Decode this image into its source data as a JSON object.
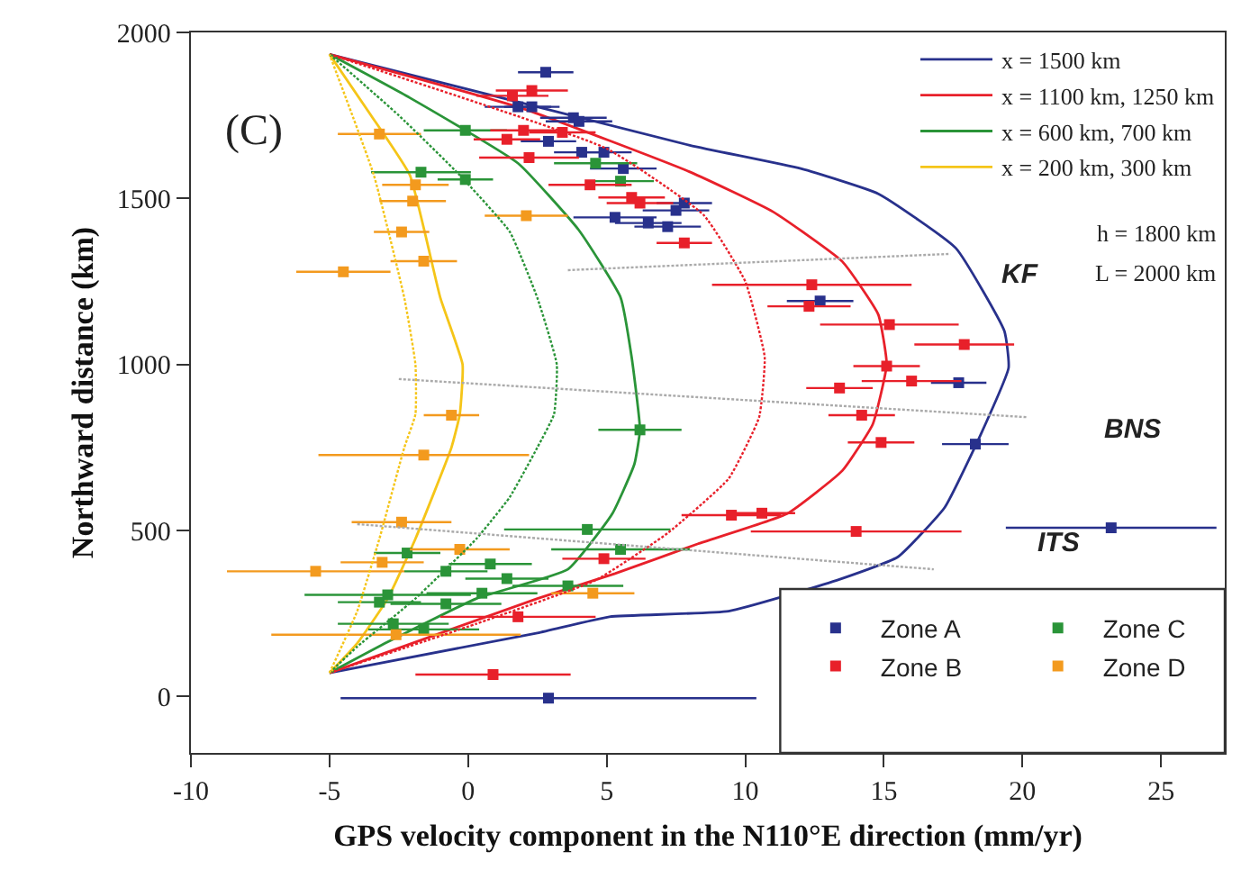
{
  "chart_data": {
    "type": "scatter",
    "xlabel": "GPS velocity component in the N110°E direction (mm/yr)",
    "ylabel": "Northward distance (km)",
    "xlim": [
      -10,
      27.3
    ],
    "ylim": [
      -170,
      2000
    ],
    "xticks": [
      -10,
      -5,
      0,
      5,
      10,
      15,
      20,
      25
    ],
    "yticks": [
      0,
      500,
      1000,
      1500,
      2000
    ],
    "legend": "right",
    "marker": "square",
    "annotations": [
      "(C)",
      "h = 1800 km",
      "L = 2000 km",
      "KF",
      "BNS",
      "ITS"
    ],
    "series": [
      {
        "type": "line",
        "marker": "none",
        "name": "x = 1500 km",
        "color": "#28318c",
        "line_style": "solid",
        "x": [
          -5,
          2.5,
          5.1,
          9.4,
          13.3,
          15.5,
          17.2,
          18.5,
          19.5,
          19.35,
          17.6,
          14.8,
          12,
          8,
          -5
        ],
        "values": [
          71,
          191,
          240,
          257,
          350,
          420,
          570,
          790,
          990,
          1100,
          1350,
          1514,
          1590,
          1660,
          1934
        ]
      },
      {
        "type": "line",
        "marker": "none",
        "color": "#e8202a",
        "line_style": "dotted",
        "x": [
          -5,
          0.3,
          4.6,
          7.2,
          9.4,
          10.5,
          10.7,
          10,
          8.5,
          5,
          -5
        ],
        "values": [
          71,
          219,
          350,
          492,
          656,
          841,
          1022,
          1250,
          1450,
          1650,
          1934
        ]
      },
      {
        "type": "line",
        "marker": "none",
        "name": "x = 1100 km, 1250 km",
        "color": "#e8202a",
        "line_style": "solid",
        "x": [
          -5,
          2.5,
          5.3,
          8.3,
          11.5,
          13.5,
          14.6,
          15.1,
          14.8,
          13.5,
          11,
          8,
          2,
          -5
        ],
        "values": [
          71,
          295,
          370,
          460,
          550,
          680,
          820,
          1000,
          1150,
          1310,
          1460,
          1580,
          1770,
          1934
        ]
      },
      {
        "type": "line",
        "marker": "none",
        "color": "#2a9438",
        "line_style": "dotted",
        "x": [
          -5,
          -4,
          -1.9,
          0.3,
          1.5,
          2.5,
          3.1,
          3.2,
          2.5,
          1.5,
          -0.3,
          -2.5,
          -5
        ],
        "values": [
          71,
          150,
          295,
          475,
          600,
          750,
          850,
          1000,
          1200,
          1400,
          1570,
          1750,
          1934
        ]
      },
      {
        "type": "line",
        "marker": "none",
        "name": "x = 600 km, 700 km",
        "color": "#2a9438",
        "line_style": "solid",
        "x": [
          -5,
          -2.9,
          0.3,
          3.6,
          5.2,
          6,
          6.2,
          5.9,
          5.5,
          4,
          1.8,
          -2.1,
          -5
        ],
        "values": [
          71,
          164,
          295,
          383,
          550,
          700,
          803,
          1022,
          1202,
          1404,
          1606,
          1803,
          1934
        ]
      },
      {
        "type": "line",
        "marker": "none",
        "color": "#f5c518",
        "line_style": "dotted",
        "x": [
          -5,
          -4,
          -3.2,
          -2.3,
          -1.9,
          -1.9,
          -2.3,
          -3.4,
          -5
        ],
        "values": [
          71,
          257,
          475,
          750,
          850,
          1000,
          1200,
          1570,
          1934
        ]
      },
      {
        "type": "line",
        "marker": "none",
        "name": "x = 200 km, 300 km",
        "color": "#f5c518",
        "line_style": "solid",
        "x": [
          -5,
          -4,
          -2.9,
          -1.9,
          -0.6,
          -0.3,
          -0.2,
          -1,
          -2.1,
          -3.5,
          -5
        ],
        "values": [
          71,
          160,
          295,
          475,
          750,
          850,
          1000,
          1200,
          1570,
          1750,
          1934
        ]
      },
      {
        "type": "line",
        "marker": "none",
        "color": "#aaaaaa",
        "line_style": "dotted",
        "x": [
          3.6,
          17.4
        ],
        "values": [
          1284,
          1333
        ]
      },
      {
        "type": "line",
        "marker": "none",
        "color": "#aaaaaa",
        "line_style": "dotted",
        "x": [
          -2.5,
          20.2
        ],
        "values": [
          956,
          841
        ]
      },
      {
        "type": "line",
        "marker": "none",
        "color": "#aaaaaa",
        "line_style": "dotted",
        "x": [
          -4,
          16.8
        ],
        "values": [
          519,
          383
        ]
      },
      {
        "name": "Zone A",
        "color": "#28318c",
        "x": [
          2.8,
          1.8,
          2.3,
          3.8,
          4.0,
          2.9,
          4.1,
          4.9,
          5.6,
          5.3,
          6.5,
          7.2,
          7.5,
          7.8,
          12.7,
          17.7,
          18.3,
          23.2,
          2.9
        ],
        "values": [
          1880,
          1776,
          1776,
          1743,
          1732,
          1672,
          1639,
          1639,
          1590,
          1443,
          1426,
          1415,
          1464,
          1486,
          1191,
          945,
          760,
          508,
          -5
        ],
        "xerrors": [
          1.0,
          1.2,
          1.0,
          1.2,
          1.2,
          1.0,
          1.0,
          1.0,
          1.2,
          1.5,
          1.2,
          1.2,
          1.2,
          1.0,
          1.2,
          1.0,
          1.2,
          3.8,
          7.5
        ]
      },
      {
        "name": "Zone C",
        "color": "#2a9438",
        "x": [
          -0.1,
          -1.7,
          -0.1,
          4.6,
          5.5,
          6.2,
          4.3,
          -2.2,
          -0.8,
          0.8,
          1.4,
          3.6,
          0.5,
          -2.9,
          -3.2,
          -0.8,
          -2.7,
          -1.6,
          5.5
        ],
        "values": [
          1705,
          1579,
          1557,
          1606,
          1552,
          803,
          503,
          432,
          377,
          399,
          355,
          333,
          311,
          306,
          284,
          279,
          219,
          202,
          443
        ],
        "xerrors": [
          1.5,
          1.8,
          1.0,
          1.5,
          1.2,
          1.5,
          3.0,
          1.2,
          1.5,
          1.5,
          1.5,
          2.0,
          2.0,
          3.0,
          1.5,
          2.0,
          2.0,
          2.0,
          2.5
        ]
      },
      {
        "name": "Zone B",
        "color": "#e8202a",
        "x": [
          2.3,
          1.6,
          2.0,
          1.4,
          3.4,
          2.2,
          4.4,
          5.9,
          6.2,
          7.8,
          12.4,
          12.3,
          15.2,
          17.9,
          15.1,
          16.0,
          13.4,
          14.2,
          14.9,
          9.5,
          10.6,
          14.0,
          4.9,
          1.8,
          0.9
        ],
        "values": [
          1825,
          1809,
          1705,
          1678,
          1699,
          1623,
          1541,
          1503,
          1486,
          1366,
          1240,
          1175,
          1120,
          1060,
          995,
          950,
          929,
          847,
          765,
          546,
          552,
          497,
          415,
          240,
          66
        ],
        "xerrors": [
          1.3,
          1.3,
          1.2,
          1.2,
          1.2,
          1.8,
          1.5,
          1.2,
          1.2,
          1.0,
          3.6,
          1.5,
          2.5,
          1.8,
          1.2,
          1.8,
          1.2,
          1.2,
          1.2,
          1.8,
          1.2,
          3.8,
          1.5,
          2.8,
          2.8
        ]
      },
      {
        "name": "Zone D",
        "color": "#f39a1e",
        "x": [
          -3.2,
          -1.9,
          -2.0,
          -2.4,
          -1.6,
          -4.5,
          2.1,
          -0.6,
          -1.6,
          -2.4,
          -0.3,
          -3.1,
          -5.5,
          -2.6,
          4.5
        ],
        "values": [
          1694,
          1541,
          1492,
          1399,
          1311,
          1279,
          1448,
          847,
          727,
          525,
          443,
          404,
          377,
          186,
          311
        ],
        "xerrors": [
          1.5,
          1.2,
          1.2,
          1.0,
          1.2,
          1.7,
          1.5,
          1.0,
          3.8,
          1.8,
          1.8,
          1.5,
          3.2,
          4.5,
          1.5
        ]
      }
    ]
  }
}
